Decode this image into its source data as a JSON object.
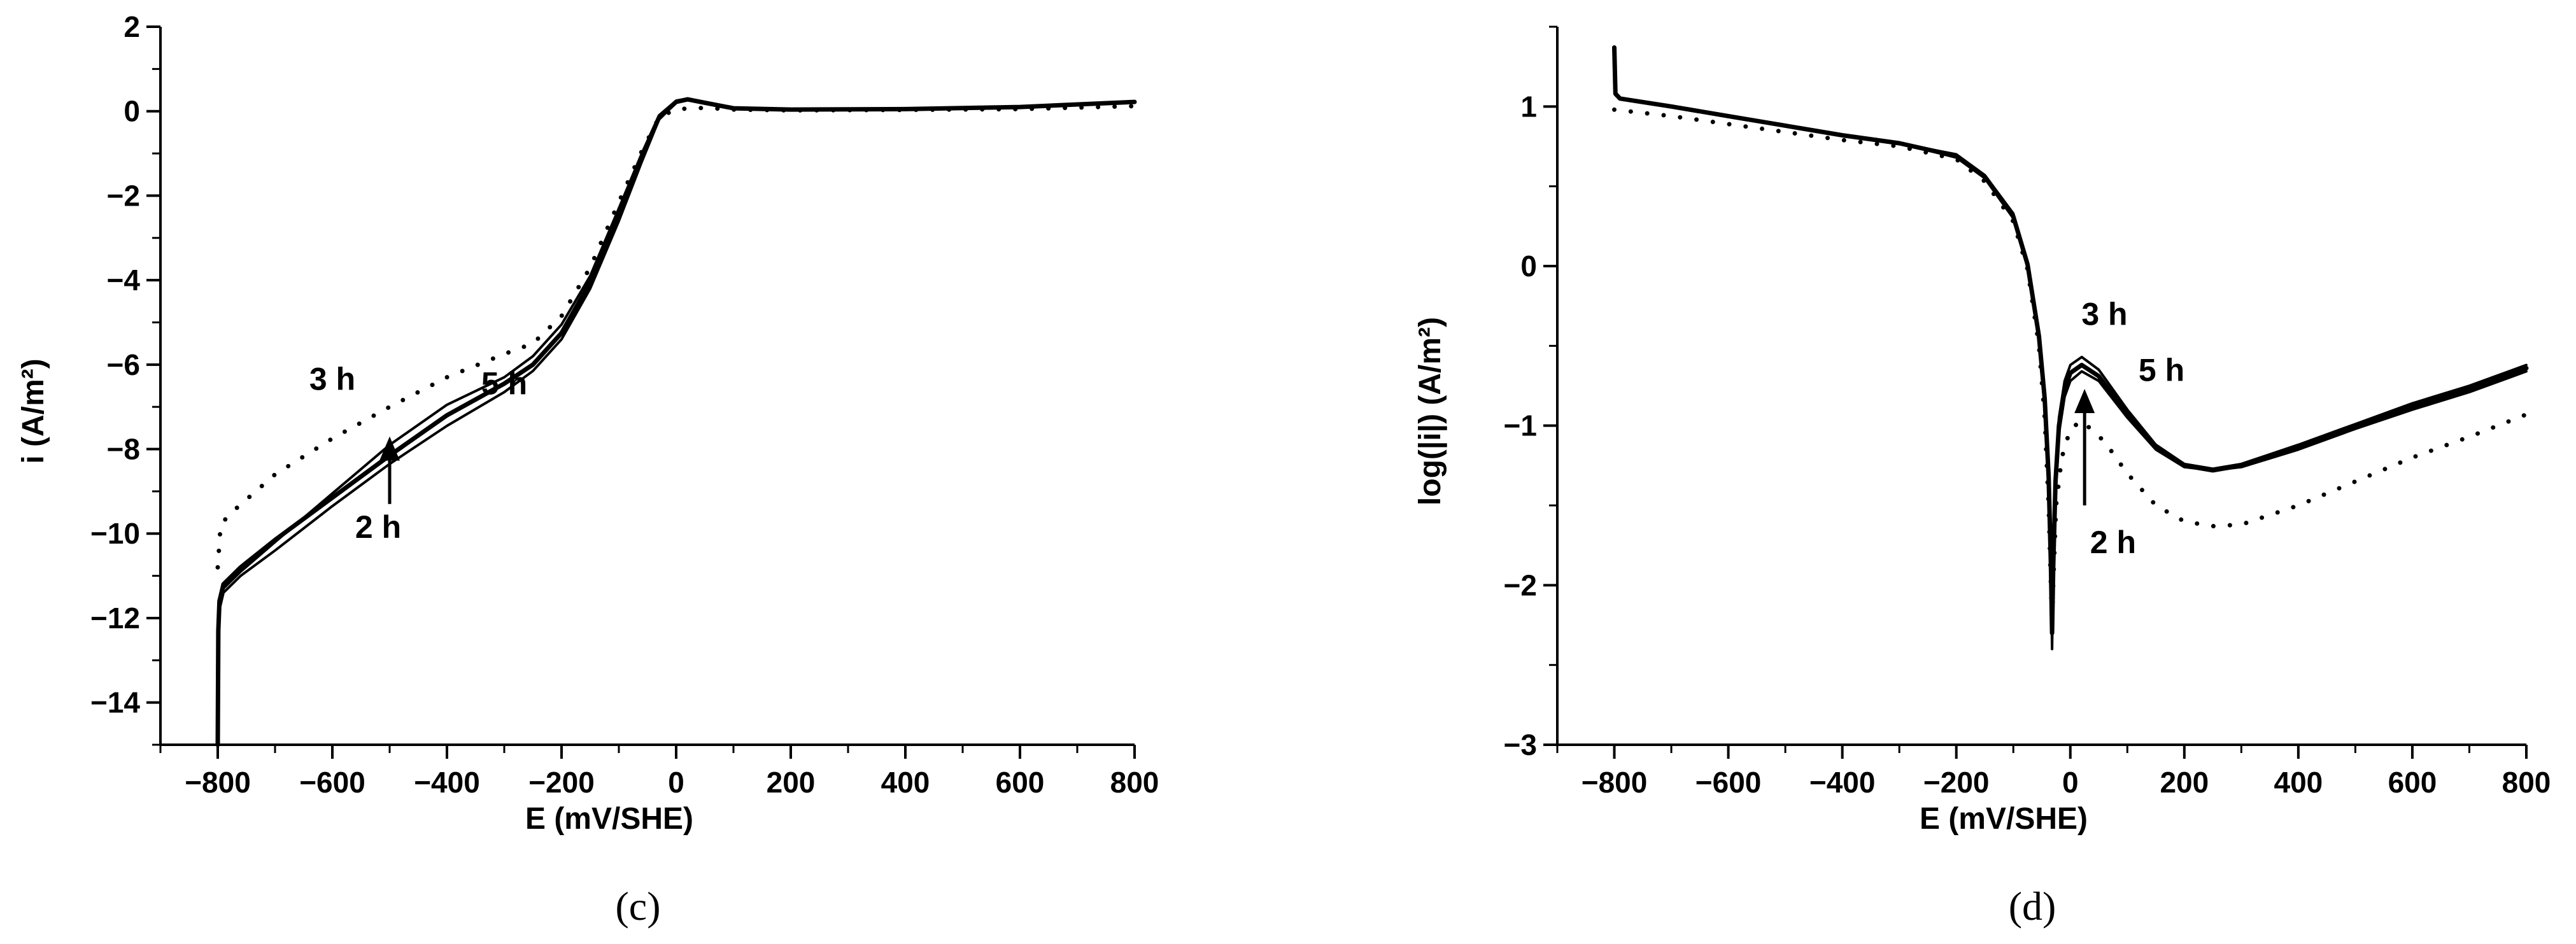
{
  "chart_data": [
    {
      "type": "line",
      "panel_label": "(c)",
      "xlabel": "E (mV/SHE)",
      "ylabel": "i  (A/m²)",
      "xlim": [
        -900,
        800
      ],
      "ylim": [
        -15,
        2
      ],
      "x_ticks": [
        -800,
        -600,
        -400,
        -200,
        0,
        200,
        400,
        600,
        800
      ],
      "y_ticks": [
        2,
        0,
        -2,
        -4,
        -6,
        -8,
        -10,
        -12,
        -14
      ],
      "series": [
        {
          "name": "2 h",
          "style": "solid",
          "points": [
            [
              -800,
              -15
            ],
            [
              -799,
              -12.5
            ],
            [
              -797,
              -11.8
            ],
            [
              -790,
              -11.4
            ],
            [
              -760,
              -11.0
            ],
            [
              -700,
              -10.4
            ],
            [
              -600,
              -9.35
            ],
            [
              -500,
              -8.35
            ],
            [
              -400,
              -7.45
            ],
            [
              -300,
              -6.65
            ],
            [
              -250,
              -6.15
            ],
            [
              -200,
              -5.4
            ],
            [
              -150,
              -4.2
            ],
            [
              -100,
              -2.6
            ],
            [
              -60,
              -1.2
            ],
            [
              -30,
              -0.2
            ],
            [
              0,
              0.2
            ],
            [
              20,
              0.28
            ],
            [
              50,
              0.22
            ],
            [
              100,
              0.08
            ],
            [
              200,
              0.04
            ],
            [
              400,
              0.05
            ],
            [
              600,
              0.1
            ],
            [
              800,
              0.22
            ]
          ]
        },
        {
          "name": "3 h",
          "style": "solid",
          "points": [
            [
              -800,
              -15
            ],
            [
              -799,
              -12.4
            ],
            [
              -797,
              -11.7
            ],
            [
              -790,
              -11.3
            ],
            [
              -760,
              -10.9
            ],
            [
              -700,
              -10.2
            ],
            [
              -600,
              -9.05
            ],
            [
              -500,
              -7.9
            ],
            [
              -400,
              -6.95
            ],
            [
              -300,
              -6.3
            ],
            [
              -250,
              -5.8
            ],
            [
              -200,
              -5.05
            ],
            [
              -150,
              -3.9
            ],
            [
              -100,
              -2.3
            ],
            [
              -60,
              -1.0
            ],
            [
              -30,
              -0.1
            ],
            [
              0,
              0.25
            ],
            [
              20,
              0.3
            ],
            [
              50,
              0.22
            ],
            [
              100,
              0.08
            ],
            [
              200,
              0.04
            ],
            [
              400,
              0.05
            ],
            [
              600,
              0.1
            ],
            [
              800,
              0.22
            ]
          ]
        },
        {
          "name": "5 h",
          "style": "solid",
          "points": [
            [
              -800,
              -15
            ],
            [
              -799,
              -12.3
            ],
            [
              -797,
              -11.6
            ],
            [
              -790,
              -11.2
            ],
            [
              -760,
              -10.8
            ],
            [
              -700,
              -10.15
            ],
            [
              -600,
              -9.15
            ],
            [
              -500,
              -8.15
            ],
            [
              -400,
              -7.2
            ],
            [
              -300,
              -6.45
            ],
            [
              -250,
              -6.0
            ],
            [
              -200,
              -5.25
            ],
            [
              -150,
              -4.05
            ],
            [
              -100,
              -2.45
            ],
            [
              -60,
              -1.1
            ],
            [
              -30,
              -0.15
            ],
            [
              0,
              0.22
            ],
            [
              20,
              0.28
            ],
            [
              50,
              0.2
            ],
            [
              100,
              0.07
            ],
            [
              200,
              0.04
            ],
            [
              400,
              0.05
            ],
            [
              600,
              0.1
            ],
            [
              800,
              0.22
            ]
          ]
        },
        {
          "name": "",
          "style": "dotted",
          "points": [
            [
              -800,
              -10.8
            ],
            [
              -795,
              -9.8
            ],
            [
              -780,
              -9.55
            ],
            [
              -700,
              -8.6
            ],
            [
              -600,
              -7.75
            ],
            [
              -500,
              -7.0
            ],
            [
              -400,
              -6.3
            ],
            [
              -300,
              -5.75
            ],
            [
              -250,
              -5.5
            ],
            [
              -200,
              -4.85
            ],
            [
              -150,
              -3.7
            ],
            [
              -100,
              -2.15
            ],
            [
              -60,
              -0.95
            ],
            [
              -30,
              -0.15
            ],
            [
              0,
              0.05
            ],
            [
              50,
              0.08
            ],
            [
              100,
              0.04
            ],
            [
              200,
              0.02
            ],
            [
              400,
              0.03
            ],
            [
              600,
              0.05
            ],
            [
              800,
              0.12
            ]
          ]
        }
      ],
      "annotations": [
        {
          "text": "3 h",
          "x": -600,
          "y": -6.6
        },
        {
          "text": "5 h",
          "x": -300,
          "y": -6.7
        },
        {
          "text": "2 h",
          "x": -520,
          "y": -10.1
        }
      ],
      "arrows": [
        {
          "x": -500,
          "from_y": -9.3,
          "to_y": -7.7
        }
      ]
    },
    {
      "type": "line",
      "panel_label": "(d)",
      "xlabel": "E (mV/SHE)",
      "ylabel": "log(|i|)  (A/m²)",
      "xlim": [
        -900,
        800
      ],
      "ylim": [
        -3,
        1.5
      ],
      "x_ticks": [
        -800,
        -600,
        -400,
        -200,
        0,
        200,
        400,
        600,
        800
      ],
      "y_ticks": [
        1,
        0,
        -1,
        -2,
        -3
      ],
      "series": [
        {
          "name": "2 h",
          "style": "solid",
          "points": [
            [
              -800,
              1.37
            ],
            [
              -798,
              1.08
            ],
            [
              -790,
              1.05
            ],
            [
              -700,
              1.0
            ],
            [
              -600,
              0.94
            ],
            [
              -500,
              0.88
            ],
            [
              -400,
              0.82
            ],
            [
              -300,
              0.77
            ],
            [
              -200,
              0.68
            ],
            [
              -150,
              0.55
            ],
            [
              -100,
              0.3
            ],
            [
              -75,
              0.0
            ],
            [
              -55,
              -0.45
            ],
            [
              -45,
              -0.85
            ],
            [
              -38,
              -1.35
            ],
            [
              -34,
              -1.9
            ],
            [
              -32,
              -2.25
            ],
            [
              -30,
              -1.9
            ],
            [
              -26,
              -1.4
            ],
            [
              -20,
              -1.05
            ],
            [
              -10,
              -0.82
            ],
            [
              0,
              -0.72
            ],
            [
              20,
              -0.66
            ],
            [
              50,
              -0.72
            ],
            [
              100,
              -0.95
            ],
            [
              150,
              -1.15
            ],
            [
              200,
              -1.26
            ],
            [
              250,
              -1.28
            ],
            [
              300,
              -1.26
            ],
            [
              400,
              -1.15
            ],
            [
              500,
              -1.02
            ],
            [
              600,
              -0.9
            ],
            [
              700,
              -0.79
            ],
            [
              800,
              -0.66
            ]
          ]
        },
        {
          "name": "3 h",
          "style": "solid",
          "points": [
            [
              -800,
              1.37
            ],
            [
              -798,
              1.08
            ],
            [
              -790,
              1.05
            ],
            [
              -700,
              1.0
            ],
            [
              -600,
              0.94
            ],
            [
              -500,
              0.88
            ],
            [
              -400,
              0.82
            ],
            [
              -300,
              0.77
            ],
            [
              -200,
              0.7
            ],
            [
              -150,
              0.57
            ],
            [
              -100,
              0.33
            ],
            [
              -75,
              0.03
            ],
            [
              -55,
              -0.42
            ],
            [
              -45,
              -0.8
            ],
            [
              -38,
              -1.3
            ],
            [
              -34,
              -1.85
            ],
            [
              -32,
              -2.4
            ],
            [
              -30,
              -1.85
            ],
            [
              -26,
              -1.3
            ],
            [
              -20,
              -0.95
            ],
            [
              -10,
              -0.72
            ],
            [
              0,
              -0.62
            ],
            [
              20,
              -0.57
            ],
            [
              50,
              -0.65
            ],
            [
              100,
              -0.9
            ],
            [
              150,
              -1.12
            ],
            [
              200,
              -1.24
            ],
            [
              250,
              -1.27
            ],
            [
              300,
              -1.24
            ],
            [
              400,
              -1.12
            ],
            [
              500,
              -0.99
            ],
            [
              600,
              -0.86
            ],
            [
              700,
              -0.75
            ],
            [
              800,
              -0.62
            ]
          ]
        },
        {
          "name": "5 h",
          "style": "solid",
          "points": [
            [
              -800,
              1.37
            ],
            [
              -798,
              1.08
            ],
            [
              -790,
              1.05
            ],
            [
              -700,
              1.0
            ],
            [
              -600,
              0.94
            ],
            [
              -500,
              0.88
            ],
            [
              -400,
              0.82
            ],
            [
              -300,
              0.77
            ],
            [
              -200,
              0.69
            ],
            [
              -150,
              0.56
            ],
            [
              -100,
              0.31
            ],
            [
              -75,
              0.01
            ],
            [
              -55,
              -0.44
            ],
            [
              -45,
              -0.83
            ],
            [
              -38,
              -1.32
            ],
            [
              -34,
              -1.88
            ],
            [
              -32,
              -2.3
            ],
            [
              -30,
              -1.88
            ],
            [
              -26,
              -1.35
            ],
            [
              -20,
              -1.0
            ],
            [
              -10,
              -0.77
            ],
            [
              0,
              -0.67
            ],
            [
              20,
              -0.62
            ],
            [
              50,
              -0.69
            ],
            [
              100,
              -0.93
            ],
            [
              150,
              -1.14
            ],
            [
              200,
              -1.25
            ],
            [
              250,
              -1.28
            ],
            [
              300,
              -1.25
            ],
            [
              400,
              -1.14
            ],
            [
              500,
              -1.01
            ],
            [
              600,
              -0.88
            ],
            [
              700,
              -0.77
            ],
            [
              800,
              -0.64
            ]
          ]
        },
        {
          "name": "",
          "style": "dotted",
          "points": [
            [
              -800,
              0.98
            ],
            [
              -700,
              0.94
            ],
            [
              -600,
              0.89
            ],
            [
              -500,
              0.84
            ],
            [
              -400,
              0.79
            ],
            [
              -300,
              0.75
            ],
            [
              -200,
              0.67
            ],
            [
              -150,
              0.53
            ],
            [
              -100,
              0.28
            ],
            [
              -75,
              -0.02
            ],
            [
              -55,
              -0.5
            ],
            [
              -45,
              -0.95
            ],
            [
              -38,
              -1.5
            ],
            [
              -34,
              -2.0
            ],
            [
              -32,
              -2.25
            ],
            [
              -30,
              -2.0
            ],
            [
              -25,
              -1.5
            ],
            [
              -15,
              -1.2
            ],
            [
              0,
              -1.02
            ],
            [
              20,
              -0.97
            ],
            [
              60,
              -1.1
            ],
            [
              100,
              -1.3
            ],
            [
              150,
              -1.5
            ],
            [
              200,
              -1.6
            ],
            [
              250,
              -1.63
            ],
            [
              300,
              -1.62
            ],
            [
              400,
              -1.5
            ],
            [
              500,
              -1.35
            ],
            [
              600,
              -1.2
            ],
            [
              700,
              -1.07
            ],
            [
              800,
              -0.93
            ]
          ]
        }
      ],
      "annotations": [
        {
          "text": "3 h",
          "x": 60,
          "y": -0.37
        },
        {
          "text": "5 h",
          "x": 160,
          "y": -0.72
        },
        {
          "text": "2 h",
          "x": 75,
          "y": -1.8
        }
      ],
      "arrows": [
        {
          "x": 25,
          "from_y": -1.5,
          "to_y": -0.77
        }
      ]
    }
  ]
}
